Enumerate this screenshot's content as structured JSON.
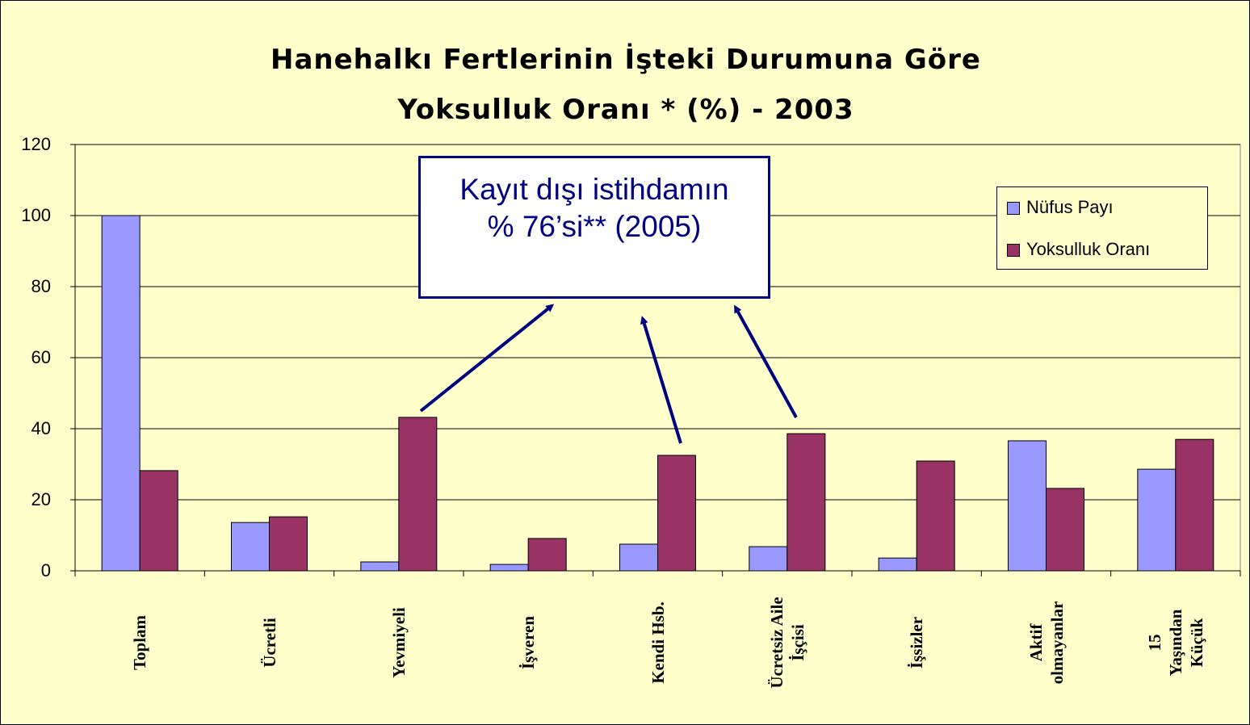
{
  "chart_data": {
    "type": "bar",
    "title": "Hanehalkı Fertlerinin İşteki Durumuna Göre\nYoksulluk Oranı * (%) - 2003",
    "annotation": "Kayıt dışı istihdamın\n% 76’si** (2005)",
    "categories": [
      "Toplam",
      "Ücretli",
      "Yevmiyeli",
      "İşveren",
      "Kendi Hsb.",
      "Ücretsiz Aile\nİşçisi",
      "İşsizler",
      "Aktif\nolmayanlar",
      "15 Yaşından\nKüçük"
    ],
    "series": [
      {
        "name": "Nüfus Payı",
        "color": "#9999ff",
        "values": [
          100,
          13.6,
          2.5,
          1.8,
          7.5,
          6.8,
          3.6,
          36.6,
          28.6
        ]
      },
      {
        "name": "Yoksulluk Oranı",
        "color": "#993366",
        "values": [
          28.2,
          15.2,
          43.2,
          9.1,
          32.5,
          38.6,
          30.9,
          23.2,
          37.0
        ]
      }
    ],
    "ylim": [
      0,
      120
    ],
    "yticks": [
      0,
      20,
      40,
      60,
      80,
      100,
      120
    ],
    "grid": true,
    "legend": "top-right"
  }
}
